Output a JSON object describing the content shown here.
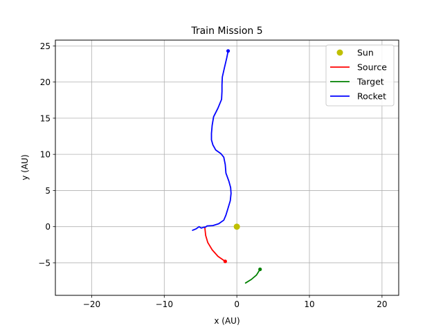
{
  "chart_data": {
    "type": "line",
    "title": "Train Mission 5",
    "xlabel": "x (AU)",
    "ylabel": "y (AU)",
    "xlim": [
      -25,
      22.3
    ],
    "ylim": [
      -9.5,
      25.8
    ],
    "xticks": [
      -20,
      -10,
      0,
      10,
      20
    ],
    "yticks": [
      -5,
      0,
      5,
      10,
      15,
      20,
      25
    ],
    "xtick_labels": [
      "−20",
      "−10",
      "0",
      "10",
      "20"
    ],
    "ytick_labels": [
      "−5",
      "0",
      "5",
      "10",
      "15",
      "20",
      "25"
    ],
    "grid": true,
    "legend_position": "top-right",
    "series": [
      {
        "name": "Sun",
        "kind": "marker",
        "color": "#bfbf00",
        "points": [
          [
            0,
            0
          ]
        ]
      },
      {
        "name": "Source",
        "kind": "line",
        "color": "#ff0000",
        "end_marker": true,
        "points": [
          [
            -4.4,
            -0.2
          ],
          [
            -4.3,
            -1.2
          ],
          [
            -4.0,
            -2.2
          ],
          [
            -3.4,
            -3.2
          ],
          [
            -2.6,
            -4.1
          ],
          [
            -1.6,
            -4.8
          ]
        ]
      },
      {
        "name": "Target",
        "kind": "line",
        "color": "#008000",
        "end_marker": true,
        "points": [
          [
            1.2,
            -7.8
          ],
          [
            2.0,
            -7.3
          ],
          [
            2.7,
            -6.7
          ],
          [
            3.2,
            -5.9
          ]
        ]
      },
      {
        "name": "Rocket",
        "kind": "line",
        "color": "#0000ff",
        "end_marker": true,
        "points": [
          [
            -6.1,
            -0.5
          ],
          [
            -5.6,
            -0.3
          ],
          [
            -5.2,
            0.0
          ],
          [
            -4.9,
            -0.2
          ],
          [
            -4.6,
            -0.1
          ],
          [
            -4.3,
            -0.05
          ],
          [
            -4.1,
            0.1
          ],
          [
            -3.3,
            0.15
          ],
          [
            -2.5,
            0.4
          ],
          [
            -1.8,
            0.9
          ],
          [
            -1.5,
            1.6
          ],
          [
            -1.2,
            2.6
          ],
          [
            -0.9,
            3.6
          ],
          [
            -0.8,
            4.6
          ],
          [
            -0.85,
            5.4
          ],
          [
            -1.1,
            6.3
          ],
          [
            -1.5,
            7.4
          ],
          [
            -1.6,
            8.6
          ],
          [
            -1.8,
            9.6
          ],
          [
            -2.2,
            10.1
          ],
          [
            -2.9,
            10.6
          ],
          [
            -3.3,
            11.3
          ],
          [
            -3.5,
            12.0
          ],
          [
            -3.5,
            12.9
          ],
          [
            -3.4,
            14.0
          ],
          [
            -3.2,
            15.2
          ],
          [
            -2.6,
            16.4
          ],
          [
            -2.1,
            17.6
          ],
          [
            -2.05,
            18.7
          ],
          [
            -2.05,
            19.6
          ],
          [
            -2.0,
            20.7
          ],
          [
            -1.7,
            22.0
          ],
          [
            -1.4,
            23.3
          ],
          [
            -1.2,
            24.3
          ]
        ]
      }
    ]
  }
}
